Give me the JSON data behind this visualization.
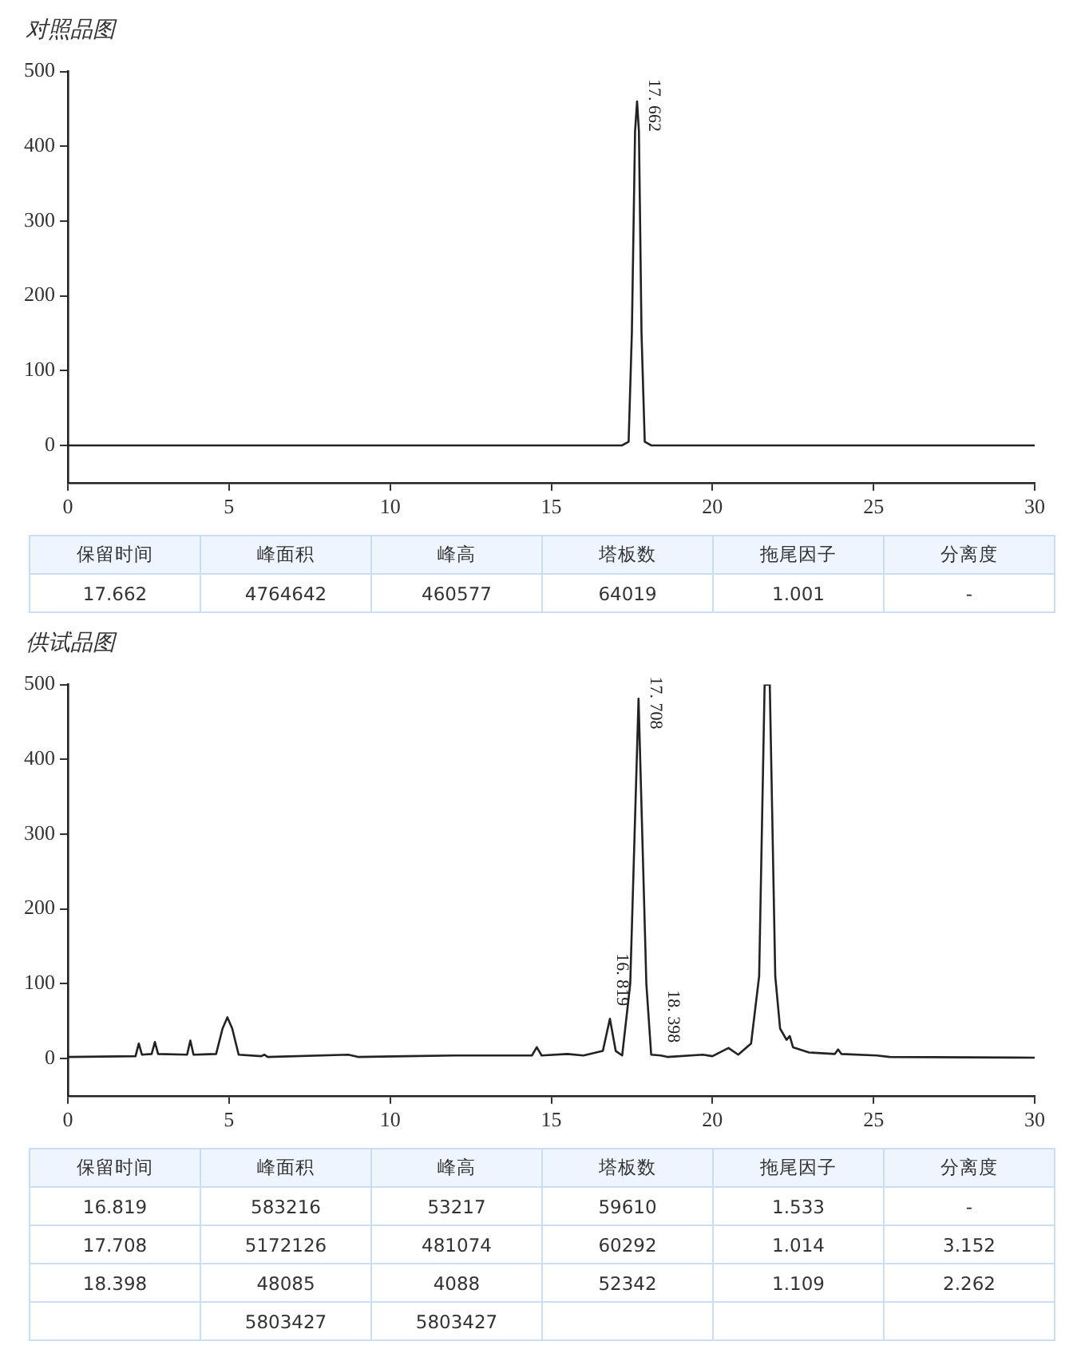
{
  "chart_data": [
    {
      "type": "line",
      "title": "对照品图",
      "color": "#222222",
      "xlim": [
        0,
        30
      ],
      "ylim": [
        -50,
        500
      ],
      "xticks": [
        0,
        5,
        10,
        15,
        20,
        25,
        30
      ],
      "yticks": [
        0,
        100,
        200,
        300,
        400,
        500
      ],
      "x": [
        0,
        5,
        10,
        15,
        17.2,
        17.4,
        17.5,
        17.6,
        17.662,
        17.72,
        17.8,
        17.9,
        18.1,
        20,
        25,
        30
      ],
      "values": [
        0,
        0,
        0,
        0,
        0,
        5,
        150,
        420,
        460,
        420,
        150,
        5,
        0,
        0,
        0,
        0
      ],
      "annotations": [
        {
          "text": "17. 662",
          "x": 17.662,
          "y": 460
        }
      ]
    },
    {
      "type": "other",
      "categories": [
        "保留时间",
        "峰面积",
        "峰高",
        "塔板数",
        "拖尾因子",
        "分离度"
      ],
      "annotations": [
        "17.662",
        "4764642",
        "460577",
        "64019",
        "1.001",
        "-"
      ]
    },
    {
      "type": "line",
      "title": "供试品图",
      "color": "#222222",
      "xlim": [
        0,
        30
      ],
      "ylim": [
        -50,
        500
      ],
      "xticks": [
        0,
        5,
        10,
        15,
        20,
        25,
        30
      ],
      "yticks": [
        0,
        100,
        200,
        300,
        400,
        500
      ],
      "x": [
        0,
        2.1,
        2.2,
        2.3,
        2.6,
        2.7,
        2.8,
        3.7,
        3.8,
        3.9,
        4.6,
        4.8,
        4.95,
        5.1,
        5.3,
        6.0,
        6.1,
        6.2,
        8.7,
        9,
        10.5,
        12,
        14.4,
        14.55,
        14.7,
        15.5,
        16,
        16.6,
        16.819,
        17.0,
        17.2,
        17.45,
        17.708,
        17.95,
        18.1,
        18.398,
        18.6,
        19.7,
        20.0,
        20.5,
        20.8,
        21.2,
        21.45,
        21.62,
        21.78,
        21.95,
        22.1,
        22.3,
        22.4,
        22.5,
        23,
        23.8,
        23.9,
        24.0,
        25.1,
        25.5,
        30
      ],
      "values": [
        2,
        3,
        20,
        5,
        6,
        22,
        6,
        5,
        24,
        5,
        6,
        40,
        55,
        40,
        5,
        3,
        5,
        2,
        5,
        2,
        3,
        4,
        4,
        15,
        4,
        6,
        4,
        10,
        53,
        10,
        4,
        100,
        481,
        100,
        5,
        4,
        2,
        5,
        3,
        14,
        5,
        20,
        110,
        500,
        500,
        110,
        40,
        25,
        30,
        15,
        8,
        6,
        12,
        6,
        4,
        2,
        1
      ],
      "annotations": [
        {
          "text": "16. 819",
          "x": 16.819,
          "y": 53
        },
        {
          "text": "17. 708",
          "x": 17.708,
          "y": 481
        },
        {
          "text": "18. 398",
          "x": 18.398,
          "y": 4
        }
      ]
    },
    {
      "type": "other",
      "categories": [
        "保留时间",
        "峰面积",
        "峰高",
        "塔板数",
        "拖尾因子",
        "分离度"
      ],
      "annotations": [
        "16.819",
        "583216",
        "53217",
        "59610",
        "1.533",
        "-",
        "17.708",
        "5172126",
        "481074",
        "60292",
        "1.014",
        "3.152",
        "18.398",
        "48085",
        "4088",
        "52342",
        "1.109",
        "2.262",
        null,
        "5803427",
        "5803427",
        null,
        null,
        null
      ]
    }
  ]
}
